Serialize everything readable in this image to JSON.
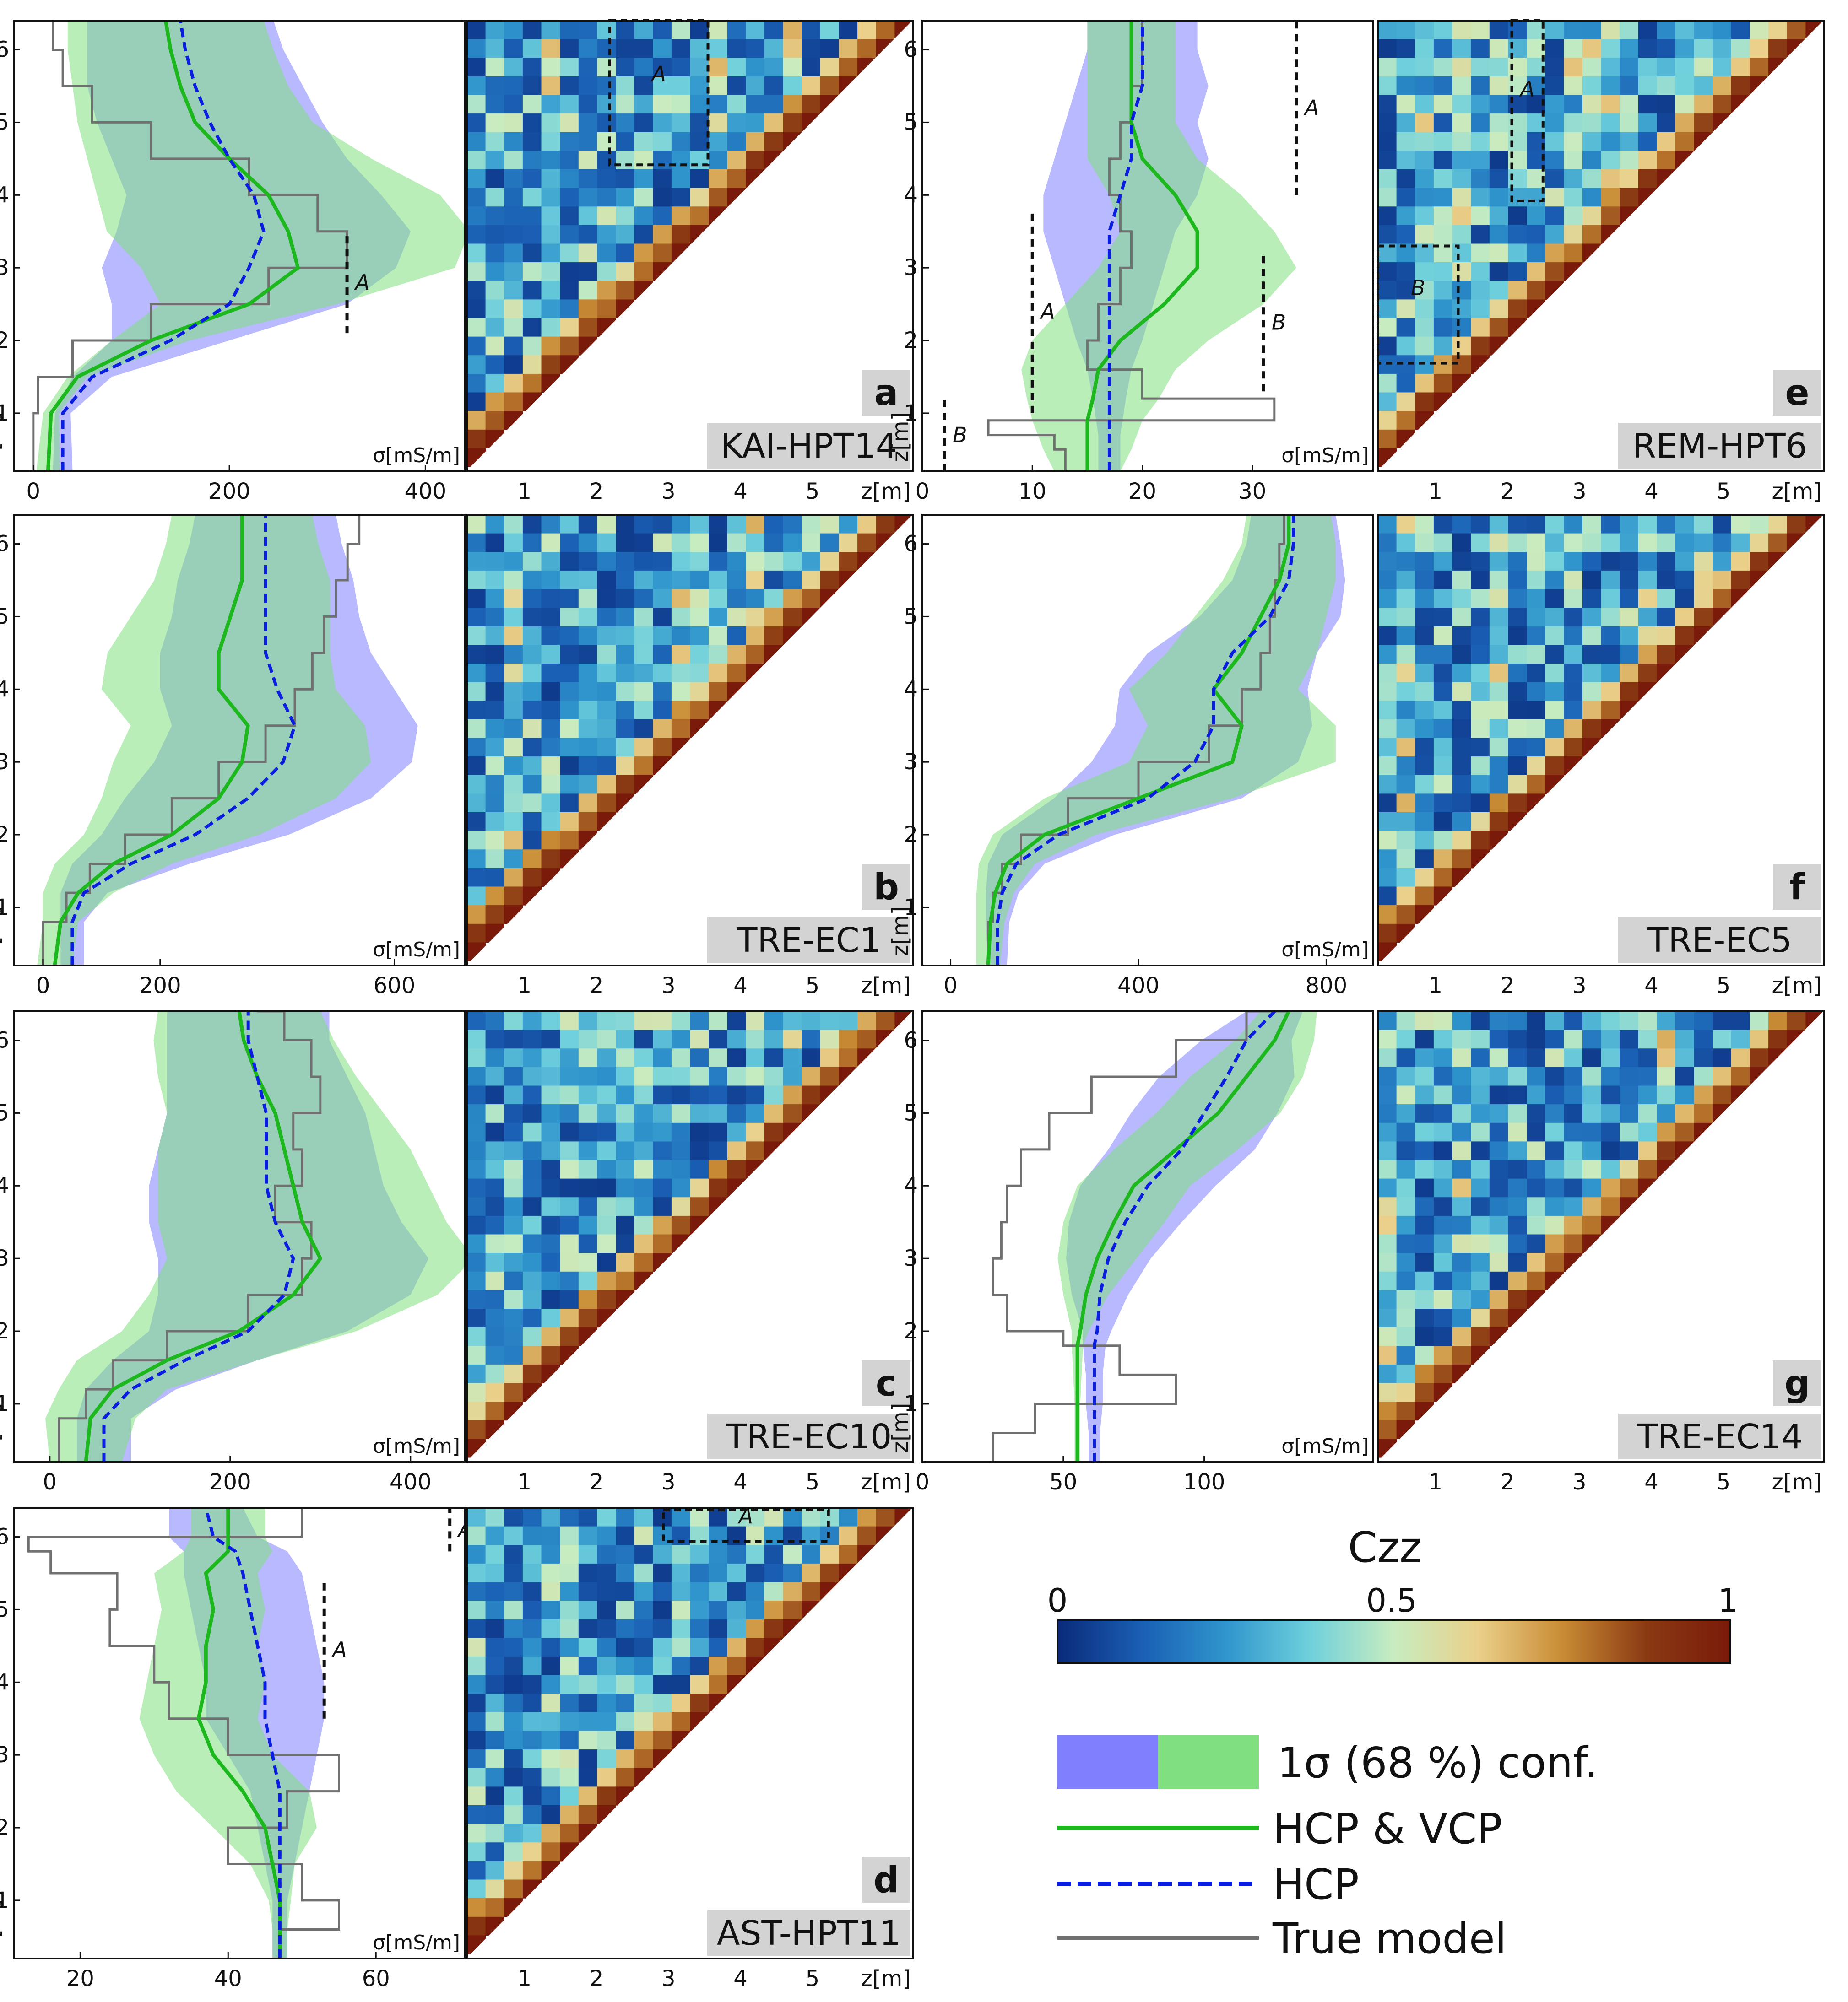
{
  "chart_data": [
    {
      "panel": "a",
      "name": "KAI-HPT14",
      "type": "line",
      "profile": {
        "x_ticks": [
          "0",
          "200",
          "400"
        ],
        "x_min": -20,
        "x_max": 440,
        "xunit": "σ[mS/m]",
        "y_ticks": [
          "1",
          "2",
          "3",
          "4",
          "5",
          "6"
        ],
        "ylabel": "z[m]",
        "ylim": [
          0.2,
          6.4
        ],
        "z": [
          0.2,
          1.0,
          1.5,
          2.0,
          2.5,
          3.0,
          3.5,
          4.0,
          4.5,
          5.0,
          5.5,
          6.0,
          6.4
        ],
        "true_model": [
          0,
          5,
          40,
          120,
          240,
          320,
          290,
          220,
          120,
          60,
          30,
          20,
          20
        ],
        "hcp_vcp": [
          15,
          18,
          45,
          120,
          220,
          270,
          260,
          240,
          200,
          165,
          150,
          140,
          135
        ],
        "hcp_vcp_band": [
          12,
          8,
          10,
          40,
          90,
          160,
          185,
          175,
          145,
          120,
          110,
          105,
          100
        ],
        "hcp": [
          30,
          30,
          60,
          140,
          200,
          220,
          235,
          225,
          200,
          180,
          165,
          155,
          150
        ],
        "hcp_band": [
          10,
          8,
          20,
          60,
          120,
          150,
          150,
          130,
          120,
          115,
          110,
          100,
          95
        ],
        "annotations": [
          {
            "text": "A",
            "z_from": 4.4,
            "z_to": 6.4,
            "x": -50
          },
          {
            "text": "A",
            "z_from": 2.1,
            "z_to": 3.5,
            "x": 320
          }
        ]
      },
      "czz": {
        "x_ticks": [
          "1",
          "2",
          "3",
          "4",
          "5"
        ],
        "xunit": "z[m]",
        "regions": [
          {
            "text": "A"
          }
        ]
      }
    },
    {
      "panel": "b",
      "name": "TRE-EC1",
      "type": "line",
      "profile": {
        "x_ticks": [
          "0",
          "200",
          "600"
        ],
        "x_min": -50,
        "x_max": 720,
        "xunit": "σ[mS/m]",
        "y_ticks": [
          "1",
          "2",
          "3",
          "4",
          "5",
          "6"
        ],
        "ylabel": "z[m]",
        "ylim": [
          0.2,
          6.4
        ],
        "z": [
          0.2,
          0.8,
          1.2,
          1.6,
          2.0,
          2.5,
          3.0,
          3.5,
          4.0,
          4.5,
          5.0,
          5.5,
          6.0,
          6.4
        ],
        "true_model": [
          0,
          40,
          80,
          140,
          220,
          300,
          380,
          430,
          460,
          480,
          500,
          520,
          540,
          540
        ],
        "hcp_vcp": [
          20,
          30,
          60,
          120,
          220,
          300,
          340,
          350,
          300,
          300,
          320,
          340,
          340,
          340
        ],
        "hcp_vcp_band": [
          30,
          30,
          60,
          100,
          150,
          200,
          220,
          200,
          200,
          190,
          170,
          150,
          130,
          120
        ],
        "hcp": [
          50,
          50,
          70,
          150,
          260,
          350,
          410,
          430,
          400,
          380,
          380,
          380,
          380,
          380
        ],
        "hcp_band": [
          20,
          20,
          40,
          100,
          160,
          210,
          220,
          210,
          200,
          180,
          160,
          150,
          130,
          120
        ],
        "annotations": []
      },
      "czz": {
        "x_ticks": [
          "1",
          "2",
          "3",
          "4",
          "5"
        ],
        "xunit": "z[m]",
        "regions": []
      }
    },
    {
      "panel": "c",
      "name": "TRE-EC10",
      "type": "line",
      "profile": {
        "x_ticks": [
          "0",
          "200",
          "400"
        ],
        "x_min": -40,
        "x_max": 460,
        "xunit": "σ[mS/m]",
        "y_ticks": [
          "1",
          "2",
          "3",
          "4",
          "5",
          "6"
        ],
        "ylabel": "z[m]",
        "ylim": [
          0.2,
          6.4
        ],
        "z": [
          0.2,
          0.8,
          1.2,
          1.6,
          2.0,
          2.5,
          3.0,
          3.5,
          4.0,
          4.5,
          5.0,
          5.5,
          6.0,
          6.4
        ],
        "true_model": [
          10,
          40,
          70,
          130,
          220,
          280,
          290,
          250,
          280,
          270,
          300,
          290,
          260,
          230
        ],
        "hcp_vcp": [
          40,
          45,
          70,
          130,
          210,
          270,
          300,
          280,
          270,
          260,
          250,
          230,
          215,
          210
        ],
        "hcp_vcp_band": [
          40,
          50,
          60,
          100,
          130,
          160,
          170,
          160,
          150,
          140,
          120,
          110,
          100,
          90
        ],
        "hcp": [
          60,
          60,
          90,
          150,
          220,
          260,
          270,
          250,
          240,
          240,
          240,
          230,
          220,
          220
        ],
        "hcp_band": [
          30,
          30,
          50,
          80,
          110,
          140,
          150,
          140,
          130,
          120,
          110,
          100,
          90,
          90
        ],
        "annotations": []
      },
      "czz": {
        "x_ticks": [
          "1",
          "2",
          "3",
          "4",
          "5"
        ],
        "xunit": "z[m]",
        "regions": []
      }
    },
    {
      "panel": "d",
      "name": "AST-HPT11",
      "type": "line",
      "profile": {
        "x_ticks": [
          "20",
          "40",
          "60"
        ],
        "x_min": 11,
        "x_max": 72,
        "xunit": "σ[mS/m]",
        "y_ticks": [
          "1",
          "2",
          "3",
          "4",
          "5",
          "6"
        ],
        "ylabel": "z[m]",
        "ylim": [
          0.2,
          6.4
        ],
        "z": [
          0.2,
          0.6,
          1.0,
          1.5,
          2.0,
          2.5,
          3.0,
          3.5,
          4.0,
          4.5,
          5.0,
          5.5,
          5.8,
          6.0,
          6.4
        ],
        "true_model": [
          47,
          55,
          50,
          40,
          48,
          55,
          40,
          32,
          30,
          24,
          25,
          16,
          13,
          50,
          42
        ],
        "hcp_vcp": [
          47,
          47,
          47,
          46,
          45,
          42,
          38,
          36,
          37,
          37,
          38,
          37,
          40,
          40,
          40
        ],
        "hcp_vcp_band": [
          1,
          1,
          1.5,
          3,
          7,
          9,
          8,
          8,
          8,
          7,
          7,
          7,
          6,
          5,
          5
        ],
        "hcp": [
          47,
          47,
          47,
          47,
          47,
          47,
          46,
          45,
          45,
          44,
          43,
          42,
          41,
          38,
          37
        ],
        "hcp_band": [
          1,
          1,
          1,
          2,
          3,
          4,
          6,
          8,
          8,
          8,
          8,
          8,
          7,
          6,
          5
        ],
        "annotations": [
          {
            "text": "A",
            "z_from": 5.8,
            "z_to": 6.4,
            "x": 70
          },
          {
            "text": "A",
            "z_from": 3.5,
            "z_to": 5.4,
            "x": 53
          }
        ]
      },
      "czz": {
        "x_ticks": [
          "1",
          "2",
          "3",
          "4",
          "5"
        ],
        "xunit": "z[m]",
        "regions": [
          {
            "text": "A"
          }
        ]
      }
    },
    {
      "panel": "e",
      "name": "REM-HPT6",
      "type": "line",
      "profile": {
        "x_ticks": [
          "0",
          "10",
          "20",
          "30"
        ],
        "x_min": 0,
        "x_max": 41,
        "xunit": "σ[mS/m]",
        "y_ticks": [
          "1",
          "2",
          "3",
          "4",
          "5",
          "6"
        ],
        "ylabel": "z[m]",
        "ylim": [
          0.2,
          6.4
        ],
        "z": [
          0.2,
          0.5,
          0.7,
          0.9,
          1.2,
          1.6,
          2.0,
          2.5,
          3.0,
          3.5,
          4.0,
          4.5,
          5.0,
          5.5,
          6.0,
          6.4
        ],
        "true_model": [
          13,
          12,
          6,
          32,
          20,
          15,
          16,
          18,
          19,
          18,
          17,
          18,
          19,
          20,
          20,
          20
        ],
        "hcp_vcp": [
          15,
          15,
          15,
          15,
          15.5,
          16,
          18,
          22,
          25,
          25,
          23,
          20,
          19,
          19,
          19,
          19
        ],
        "hcp_vcp_band": [
          3,
          4,
          4.5,
          5,
          6,
          7,
          8,
          9,
          9,
          7,
          6,
          5,
          4,
          4,
          4,
          4
        ],
        "hcp": [
          17,
          17,
          17,
          17,
          17,
          17,
          17,
          17,
          17,
          17,
          18,
          19,
          19,
          20,
          20,
          20
        ],
        "hcp_band": [
          1,
          1,
          1,
          1.2,
          1.5,
          2,
          3,
          4,
          5,
          6,
          7,
          7,
          6,
          6,
          5,
          5
        ],
        "annotations": [
          {
            "text": "A",
            "z_from": 4.0,
            "z_to": 6.5,
            "x": 34
          },
          {
            "text": "A",
            "z_from": 1.0,
            "z_to": 3.8,
            "x": 10
          },
          {
            "text": "B",
            "z_from": 1.3,
            "z_to": 3.2,
            "x": 31
          },
          {
            "text": "B",
            "z_from": 0.0,
            "z_to": 1.2,
            "x": 2
          }
        ]
      },
      "czz": {
        "x_ticks": [
          "1",
          "2",
          "3",
          "4",
          "5"
        ],
        "xunit": "z[m]",
        "regions": [
          {
            "text": "A"
          },
          {
            "text": "B"
          }
        ]
      }
    },
    {
      "panel": "f",
      "name": "TRE-EC5",
      "type": "line",
      "profile": {
        "x_ticks": [
          "0",
          "400",
          "800"
        ],
        "x_min": -60,
        "x_max": 900,
        "xunit": "σ[mS/m]",
        "y_ticks": [
          "1",
          "2",
          "3",
          "4",
          "5",
          "6"
        ],
        "ylabel": "z[m]",
        "ylim": [
          0.2,
          6.4
        ],
        "z": [
          0.2,
          0.8,
          1.2,
          1.6,
          2.0,
          2.5,
          3.0,
          3.5,
          4.0,
          4.5,
          5.0,
          5.5,
          6.0,
          6.4
        ],
        "true_model": [
          80,
          90,
          110,
          150,
          250,
          400,
          550,
          620,
          660,
          680,
          690,
          700,
          710,
          720
        ],
        "hcp_vcp": [
          80,
          85,
          95,
          120,
          200,
          400,
          600,
          620,
          560,
          620,
          660,
          700,
          720,
          720
        ],
        "hcp_vcp_band": [
          25,
          30,
          40,
          60,
          110,
          200,
          220,
          200,
          180,
          160,
          140,
          120,
          100,
          90
        ],
        "hcp": [
          100,
          100,
          110,
          140,
          230,
          420,
          520,
          560,
          560,
          600,
          680,
          720,
          730,
          730
        ],
        "hcp_band": [
          20,
          25,
          35,
          60,
          120,
          200,
          220,
          210,
          200,
          180,
          150,
          120,
          100,
          90
        ],
        "annotations": []
      },
      "czz": {
        "x_ticks": [
          "1",
          "2",
          "3",
          "4",
          "5"
        ],
        "xunit": "z[m]",
        "regions": []
      }
    },
    {
      "panel": "g",
      "name": "TRE-EC14",
      "type": "line",
      "profile": {
        "x_ticks": [
          "0",
          "50",
          "100"
        ],
        "x_min": 0,
        "x_max": 160,
        "xunit": "σ[mS/m]",
        "y_ticks": [
          "1",
          "2",
          "3",
          "4",
          "5",
          "6"
        ],
        "ylabel": "z[m]",
        "ylim": [
          0.2,
          6.4
        ],
        "z": [
          0.2,
          0.6,
          1.0,
          1.4,
          1.8,
          2.0,
          2.5,
          3.0,
          3.5,
          4.0,
          4.5,
          5.0,
          5.5,
          6.0,
          6.4
        ],
        "true_model": [
          25,
          40,
          90,
          70,
          50,
          30,
          25,
          28,
          30,
          35,
          45,
          60,
          90,
          115,
          130
        ],
        "hcp_vcp": [
          55,
          55,
          55,
          55,
          55,
          56,
          58,
          62,
          68,
          75,
          90,
          105,
          115,
          125,
          130
        ],
        "hcp_vcp_band": [
          1,
          1,
          1,
          1.5,
          2,
          3,
          8,
          14,
          18,
          20,
          22,
          22,
          20,
          14,
          10
        ],
        "hcp": [
          61,
          61,
          61,
          61,
          61,
          62,
          63,
          66,
          72,
          80,
          92,
          100,
          108,
          115,
          125
        ],
        "hcp_band": [
          2,
          2,
          3,
          3,
          4,
          5,
          10,
          15,
          20,
          24,
          26,
          26,
          24,
          16,
          10
        ],
        "annotations": []
      },
      "czz": {
        "x_ticks": [
          "1",
          "2",
          "3",
          "4",
          "5"
        ],
        "xunit": "z[m]",
        "regions": []
      }
    }
  ],
  "colorbar": {
    "title": "Czz",
    "ticks": [
      "0",
      "0.5",
      "1"
    ],
    "stops": [
      "#0a2a7a",
      "#1a5fb4",
      "#2f95cc",
      "#6fd0dc",
      "#c8ecc0",
      "#ead08a",
      "#c98c35",
      "#8a3a13",
      "#7a1a0a"
    ]
  },
  "legend": {
    "band_label": "1σ (68 %) conf.",
    "hcp_vcp_label": "HCP & VCP",
    "hcp_label": "HCP",
    "true_label": "True model",
    "hcp_band_color": "#8080ff",
    "hcp_vcp_band_color": "#80e080",
    "hcp_vcp_color": "#1db81d",
    "hcp_color": "#0a1ee0",
    "true_color": "#707070"
  }
}
